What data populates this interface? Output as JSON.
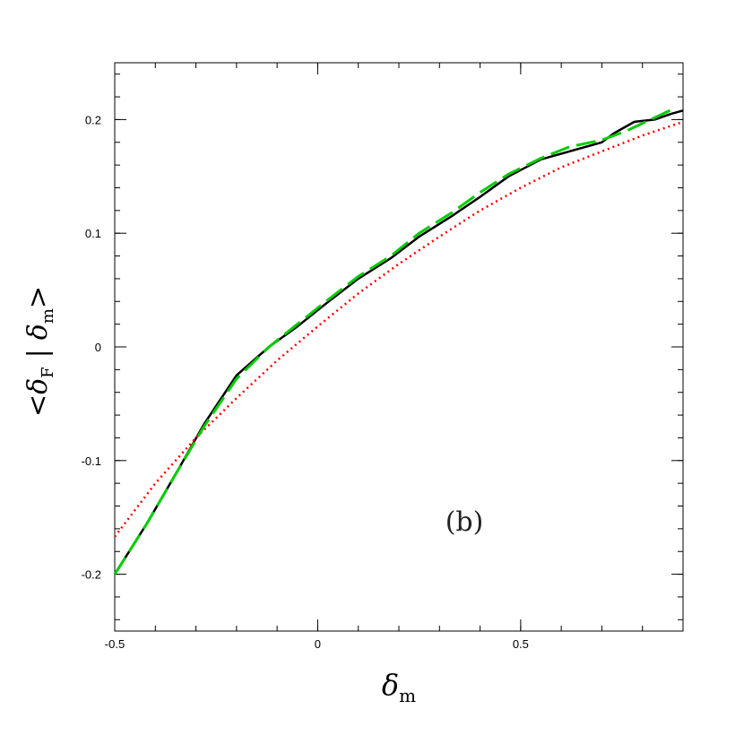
{
  "chart_data": {
    "type": "line",
    "xlabel": "δm",
    "ylabel": "<δF | δm>",
    "xlim": [
      -0.5,
      0.9
    ],
    "ylim": [
      -0.25,
      0.25
    ],
    "xticks": [
      -0.5,
      0,
      0.5
    ],
    "yticks": [
      -0.2,
      -0.1,
      0,
      0.1,
      0.2
    ],
    "xtick_labels": [
      "-0.5",
      "0",
      "0.5"
    ],
    "ytick_labels": [
      "-0.2",
      "-0.1",
      "0",
      "0.1",
      "0.2"
    ],
    "grid": false,
    "annotation": "(b)",
    "series": [
      {
        "style": "solid",
        "color": "#000000",
        "x": [
          -0.5,
          -0.42,
          -0.35,
          -0.28,
          -0.2,
          -0.12,
          -0.05,
          0.02,
          0.1,
          0.18,
          0.25,
          0.33,
          0.4,
          0.47,
          0.55,
          0.62,
          0.7,
          0.73,
          0.78,
          0.83,
          0.87,
          0.9
        ],
        "y": [
          -0.2,
          -0.155,
          -0.112,
          -0.068,
          -0.025,
          0.0,
          0.018,
          0.038,
          0.06,
          0.078,
          0.097,
          0.115,
          0.132,
          0.15,
          0.165,
          0.172,
          0.18,
          0.188,
          0.198,
          0.2,
          0.205,
          0.208
        ]
      },
      {
        "style": "dashed",
        "color": "#00cc00",
        "x": [
          -0.5,
          -0.42,
          -0.35,
          -0.28,
          -0.2,
          -0.12,
          -0.05,
          0.02,
          0.1,
          0.18,
          0.25,
          0.33,
          0.4,
          0.47,
          0.55,
          0.62,
          0.7,
          0.76,
          0.82,
          0.88
        ],
        "y": [
          -0.2,
          -0.155,
          -0.112,
          -0.07,
          -0.028,
          0.0,
          0.02,
          0.04,
          0.062,
          0.08,
          0.1,
          0.118,
          0.136,
          0.152,
          0.166,
          0.176,
          0.182,
          0.19,
          0.2,
          0.21
        ]
      },
      {
        "style": "dotted",
        "color": "#ff0000",
        "x": [
          -0.5,
          -0.4,
          -0.3,
          -0.2,
          -0.1,
          0.0,
          0.1,
          0.2,
          0.3,
          0.4,
          0.5,
          0.6,
          0.7,
          0.8,
          0.9
        ],
        "y": [
          -0.167,
          -0.12,
          -0.08,
          -0.045,
          -0.012,
          0.018,
          0.047,
          0.073,
          0.097,
          0.12,
          0.14,
          0.158,
          0.172,
          0.186,
          0.198
        ]
      }
    ]
  }
}
